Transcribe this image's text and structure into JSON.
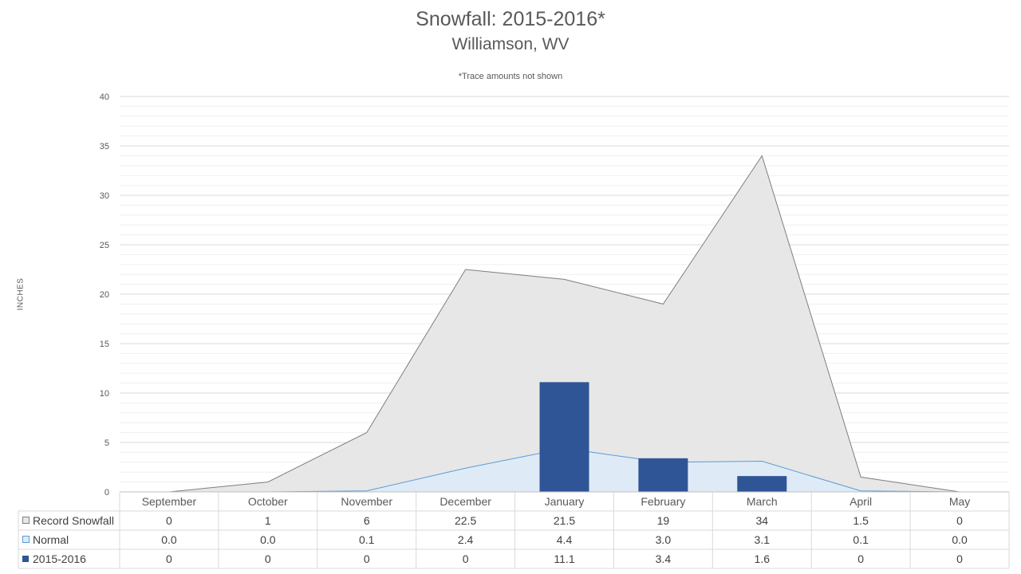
{
  "chart_data": {
    "type": "area",
    "title": "Snowfall: 2015-2016*",
    "subtitle": "Williamson, WV",
    "note": "*Trace amounts not shown",
    "ylabel": "INCHES",
    "ylim": [
      0,
      40
    ],
    "yticks": [
      0,
      5,
      10,
      15,
      20,
      25,
      30,
      35,
      40
    ],
    "grid": true,
    "legend": "data-table",
    "categories": [
      "September",
      "October",
      "November",
      "December",
      "January",
      "February",
      "March",
      "April",
      "May"
    ],
    "series": [
      {
        "name": "Record Snowfall",
        "kind": "area",
        "color": "#e7e7e7",
        "stroke": "#7f7f7f",
        "values": [
          0,
          1,
          6,
          22.5,
          21.5,
          19,
          34,
          1.5,
          0
        ],
        "labels": [
          "0",
          "1",
          "6",
          "22.5",
          "21.5",
          "19",
          "34",
          "1.5",
          "0"
        ]
      },
      {
        "name": "Normal",
        "kind": "area",
        "color": "#deebf7",
        "stroke": "#5b9bd5",
        "values": [
          0.0,
          0.0,
          0.1,
          2.4,
          4.4,
          3.0,
          3.1,
          0.1,
          0.0
        ],
        "labels": [
          "0.0",
          "0.0",
          "0.1",
          "2.4",
          "4.4",
          "3.0",
          "3.1",
          "0.1",
          "0.0"
        ]
      },
      {
        "name": "2015-2016",
        "kind": "bar",
        "color": "#2f5597",
        "values": [
          0,
          0,
          0,
          0,
          11.1,
          3.4,
          1.6,
          0,
          0
        ],
        "labels": [
          "0",
          "0",
          "0",
          "0",
          "11.1",
          "3.4",
          "1.6",
          "0",
          "0"
        ]
      }
    ]
  }
}
